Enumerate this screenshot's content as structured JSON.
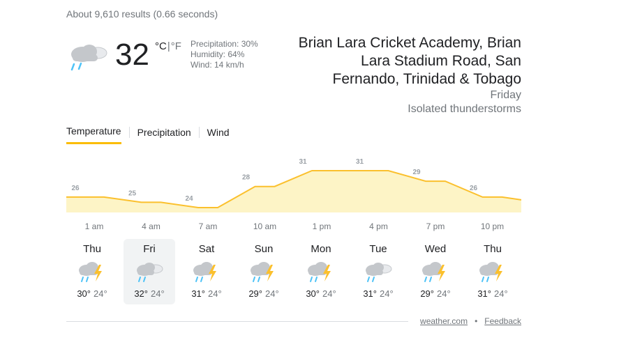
{
  "results_stats": "About 9,610 results (0.66 seconds)",
  "current": {
    "temp": "32",
    "unit_c": "°C",
    "unit_f": "°F",
    "unit_sep": "|",
    "precipitation": "Precipitation: 30%",
    "humidity": "Humidity: 64%",
    "wind": "Wind: 14 km/h",
    "icon": "rain-cloud-icon"
  },
  "location": {
    "title": "Brian Lara Cricket Academy, Brian Lara Stadium Road, San Fernando, Trinidad & Tobago",
    "day": "Friday",
    "condition": "Isolated thunderstorms"
  },
  "tabs": [
    {
      "label": "Temperature",
      "active": true
    },
    {
      "label": "Precipitation",
      "active": false
    },
    {
      "label": "Wind",
      "active": false
    }
  ],
  "chart_data": {
    "type": "area",
    "x": [
      "1 am",
      "4 am",
      "7 am",
      "10 am",
      "1 pm",
      "4 pm",
      "7 pm",
      "10 pm"
    ],
    "values": [
      26,
      25,
      24,
      28,
      31,
      31,
      29,
      26
    ],
    "colors": {
      "line": "#fbc02d",
      "fill": "#fdf4c6"
    }
  },
  "forecast": [
    {
      "day": "Thu",
      "icon": "thunderstorm-icon",
      "hi": "30°",
      "lo": "24°",
      "selected": false
    },
    {
      "day": "Fri",
      "icon": "rain-cloud-icon",
      "hi": "32°",
      "lo": "24°",
      "selected": true
    },
    {
      "day": "Sat",
      "icon": "thunderstorm-icon",
      "hi": "31°",
      "lo": "24°",
      "selected": false
    },
    {
      "day": "Sun",
      "icon": "thunderstorm-icon",
      "hi": "29°",
      "lo": "24°",
      "selected": false
    },
    {
      "day": "Mon",
      "icon": "thunderstorm-icon",
      "hi": "30°",
      "lo": "24°",
      "selected": false
    },
    {
      "day": "Tue",
      "icon": "rain-cloud-icon",
      "hi": "31°",
      "lo": "24°",
      "selected": false
    },
    {
      "day": "Wed",
      "icon": "thunderstorm-icon",
      "hi": "29°",
      "lo": "24°",
      "selected": false
    },
    {
      "day": "Thu",
      "icon": "thunderstorm-icon",
      "hi": "31°",
      "lo": "24°",
      "selected": false
    }
  ],
  "footer": {
    "source": "weather.com",
    "dot": "•",
    "feedback": "Feedback"
  }
}
